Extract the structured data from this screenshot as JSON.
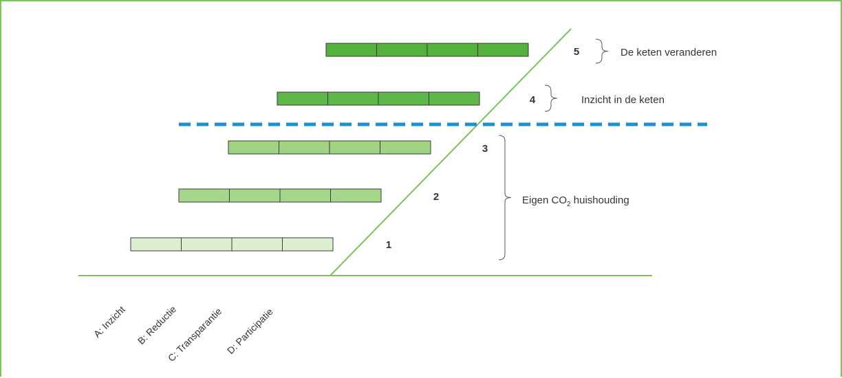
{
  "colors": {
    "frame": "#7dc15a",
    "diagonal": "#7dc15a",
    "baseline": "#7dc15a",
    "threshold": "#1b8fcf",
    "text": "#333333",
    "level_fills": [
      "#dcefd0",
      "#a6d68a",
      "#9fd382",
      "#5cb648",
      "#54b13e"
    ],
    "cell_border": "#3a3a3a"
  },
  "levels": [
    {
      "number": "1",
      "segments": 4
    },
    {
      "number": "2",
      "segments": 4
    },
    {
      "number": "3",
      "segments": 4
    },
    {
      "number": "4",
      "segments": 4
    },
    {
      "number": "5",
      "segments": 4
    }
  ],
  "groups": [
    {
      "id": "keten-veranderen",
      "label": "De keten veranderen",
      "levels": [
        "5"
      ]
    },
    {
      "id": "inzicht-keten",
      "label": "Inzicht in de keten",
      "levels": [
        "4"
      ]
    },
    {
      "id": "eigen-co2",
      "label_parts": {
        "before": "Eigen CO",
        "sub": "2",
        "after": " huishouding"
      },
      "levels": [
        "1",
        "2",
        "3"
      ]
    }
  ],
  "axis_labels": [
    "A: Inzicht",
    "B: Reductie",
    "C: Transparantie",
    "D: Participatie"
  ]
}
